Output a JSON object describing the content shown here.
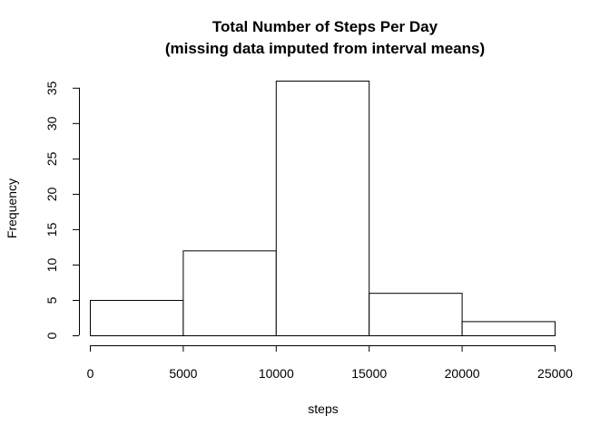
{
  "chart_data": {
    "type": "bar",
    "title": "Total Number of Steps Per Day",
    "subtitle": "(missing data imputed from interval means)",
    "xlabel": "steps",
    "ylabel": "Frequency",
    "bins": [
      {
        "start": 0,
        "end": 5000,
        "value": 5
      },
      {
        "start": 5000,
        "end": 10000,
        "value": 12
      },
      {
        "start": 10000,
        "end": 15000,
        "value": 36
      },
      {
        "start": 15000,
        "end": 20000,
        "value": 6
      },
      {
        "start": 20000,
        "end": 25000,
        "value": 2
      }
    ],
    "xlim": [
      0,
      25000
    ],
    "ylim": [
      0,
      36
    ],
    "x_ticks": [
      0,
      5000,
      10000,
      15000,
      20000,
      25000
    ],
    "y_ticks": [
      0,
      5,
      10,
      15,
      20,
      25,
      30,
      35
    ],
    "grid": false,
    "colors": {
      "bar_fill": "#ffffff",
      "bar_stroke": "#000000"
    }
  }
}
